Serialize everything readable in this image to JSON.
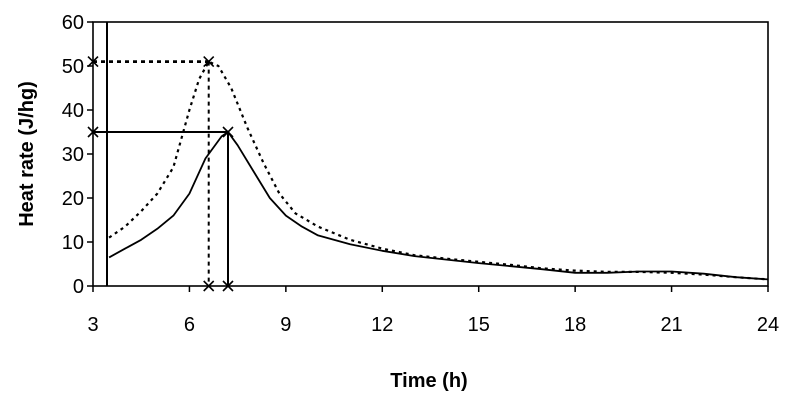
{
  "chart_data": {
    "type": "line",
    "xlabel": "Time (h)",
    "ylabel": "Heat rate (J/hg)",
    "xlim": [
      3,
      24
    ],
    "ylim": [
      0,
      60
    ],
    "x_ticks": [
      3,
      6,
      9,
      12,
      15,
      18,
      21,
      24
    ],
    "y_ticks": [
      0,
      10,
      20,
      30,
      40,
      50,
      60
    ],
    "grid": false,
    "legend": "none",
    "series": [
      {
        "style": "solid",
        "color": "#000000",
        "points": [
          [
            3.5,
            6.5
          ],
          [
            4.0,
            8.5
          ],
          [
            4.5,
            10.5
          ],
          [
            5.0,
            13.0
          ],
          [
            5.5,
            16.0
          ],
          [
            6.0,
            21.0
          ],
          [
            6.5,
            29.0
          ],
          [
            7.0,
            34.0
          ],
          [
            7.2,
            35.0
          ],
          [
            7.5,
            32.0
          ],
          [
            8.0,
            26.0
          ],
          [
            8.5,
            20.0
          ],
          [
            9.0,
            16.0
          ],
          [
            9.5,
            13.5
          ],
          [
            10.0,
            11.5
          ],
          [
            11.0,
            9.5
          ],
          [
            12.0,
            8.0
          ],
          [
            13.0,
            6.8
          ],
          [
            14.0,
            6.0
          ],
          [
            15.0,
            5.2
          ],
          [
            16.0,
            4.5
          ],
          [
            17.0,
            3.8
          ],
          [
            18.0,
            3.0
          ],
          [
            19.0,
            3.0
          ],
          [
            20.0,
            3.3
          ],
          [
            21.0,
            3.3
          ],
          [
            22.0,
            2.8
          ],
          [
            23.0,
            2.0
          ],
          [
            24.0,
            1.5
          ]
        ]
      },
      {
        "style": "dotted",
        "color": "#000000",
        "points": [
          [
            3.5,
            11.0
          ],
          [
            4.0,
            13.5
          ],
          [
            4.5,
            17.0
          ],
          [
            5.0,
            21.0
          ],
          [
            5.5,
            27.0
          ],
          [
            6.0,
            40.0
          ],
          [
            6.3,
            47.0
          ],
          [
            6.6,
            51.0
          ],
          [
            6.9,
            50.0
          ],
          [
            7.3,
            45.0
          ],
          [
            7.8,
            36.0
          ],
          [
            8.3,
            28.0
          ],
          [
            8.8,
            21.0
          ],
          [
            9.3,
            16.5
          ],
          [
            10.0,
            13.5
          ],
          [
            11.0,
            10.5
          ],
          [
            12.0,
            8.5
          ],
          [
            13.0,
            7.0
          ],
          [
            14.0,
            6.2
          ],
          [
            15.0,
            5.5
          ],
          [
            16.0,
            4.8
          ],
          [
            17.0,
            4.0
          ],
          [
            18.0,
            3.5
          ],
          [
            19.0,
            3.2
          ],
          [
            20.0,
            3.2
          ],
          [
            21.0,
            3.0
          ],
          [
            22.0,
            2.6
          ],
          [
            23.0,
            2.0
          ],
          [
            24.0,
            1.5
          ]
        ]
      }
    ],
    "annotations": [
      {
        "style": "dotted",
        "x_peak": 6.6,
        "y_peak": 51.0
      },
      {
        "style": "solid",
        "x_peak": 7.2,
        "y_peak": 35.0
      }
    ]
  }
}
